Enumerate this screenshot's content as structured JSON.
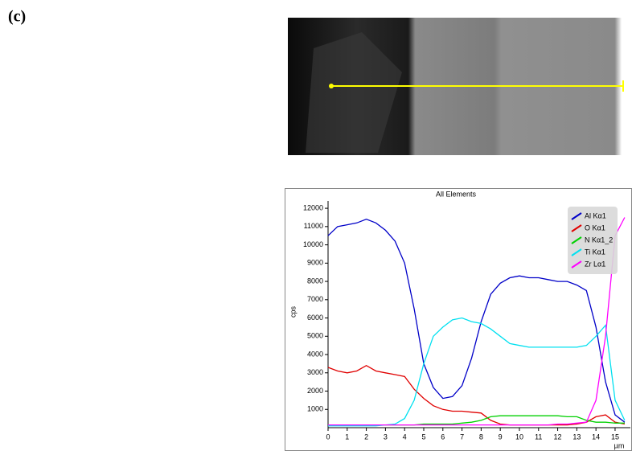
{
  "panel_label": "(c)",
  "chart_data": {
    "type": "line",
    "title": "All Elements",
    "x_label": "µm",
    "y_label": "cps",
    "x": [
      0,
      0.5,
      1,
      1.5,
      2,
      2.5,
      3,
      3.5,
      4,
      4.5,
      5,
      5.5,
      6,
      6.5,
      7,
      7.5,
      8,
      8.5,
      9,
      9.5,
      10,
      10.5,
      11,
      11.5,
      12,
      12.5,
      13,
      13.5,
      14,
      14.5,
      15,
      15.5
    ],
    "series": [
      {
        "name": "Al Kα1",
        "color": "#0000c8",
        "values": [
          10500,
          11000,
          11100,
          11200,
          11400,
          11200,
          10800,
          10200,
          9000,
          6500,
          3500,
          2200,
          1600,
          1700,
          2300,
          3800,
          5800,
          7300,
          7900,
          8200,
          8300,
          8200,
          8200,
          8100,
          8000,
          8000,
          7800,
          7500,
          5500,
          2500,
          700,
          300
        ]
      },
      {
        "name": "O Kα1",
        "color": "#e00000",
        "values": [
          3300,
          3100,
          3000,
          3100,
          3400,
          3100,
          3000,
          2900,
          2800,
          2100,
          1600,
          1200,
          1000,
          900,
          900,
          850,
          800,
          400,
          200,
          150,
          150,
          150,
          150,
          150,
          150,
          150,
          200,
          300,
          600,
          700,
          300,
          200
        ]
      },
      {
        "name": "N Kα1_2",
        "color": "#00d000",
        "values": [
          150,
          150,
          150,
          150,
          150,
          150,
          150,
          150,
          150,
          150,
          200,
          200,
          200,
          200,
          250,
          300,
          400,
          600,
          650,
          650,
          650,
          650,
          650,
          650,
          650,
          600,
          600,
          400,
          300,
          300,
          250,
          250
        ]
      },
      {
        "name": "Ti Kα1",
        "color": "#00e0f0",
        "values": [
          100,
          100,
          100,
          100,
          100,
          100,
          150,
          200,
          500,
          1500,
          3500,
          5000,
          5500,
          5900,
          6000,
          5800,
          5700,
          5400,
          5000,
          4600,
          4500,
          4400,
          4400,
          4400,
          4400,
          4400,
          4400,
          4500,
          5000,
          5600,
          1500,
          400
        ]
      },
      {
        "name": "Zr Lα1",
        "color": "#ff00ff",
        "values": [
          150,
          150,
          150,
          150,
          150,
          150,
          150,
          150,
          150,
          150,
          150,
          150,
          150,
          150,
          150,
          150,
          150,
          150,
          150,
          150,
          150,
          150,
          150,
          150,
          200,
          200,
          250,
          300,
          1500,
          5000,
          10500,
          11500
        ]
      }
    ],
    "xlim": [
      0,
      15.8
    ],
    "xticks": [
      0,
      1,
      2,
      3,
      4,
      5,
      6,
      7,
      8,
      9,
      10,
      11,
      12,
      13,
      14,
      15
    ],
    "ylim": [
      0,
      12400
    ],
    "yticks": [
      1000,
      2000,
      3000,
      4000,
      5000,
      6000,
      7000,
      8000,
      9000,
      10000,
      11000,
      12000
    ],
    "legend": "upper right"
  }
}
